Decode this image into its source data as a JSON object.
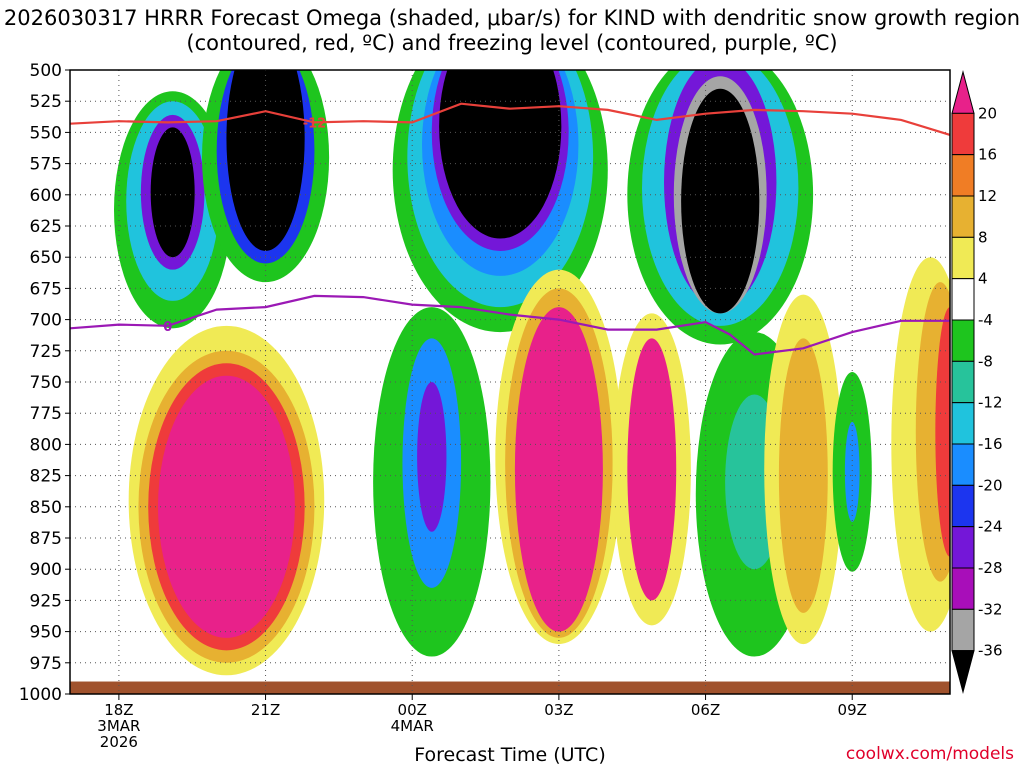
{
  "chart_data": {
    "type": "heatmap",
    "title": "2026030317 HRRR Forecast Omega (shaded, μbar/s) for KIND with dendritic snow growth region (contoured, red, ºC) and freezing level (contoured, purple, ºC)",
    "xlabel": "Forecast Time (UTC)",
    "ylabel": "",
    "y_ticks": [
      "500",
      "525",
      "550",
      "575",
      "600",
      "625",
      "650",
      "675",
      "700",
      "725",
      "750",
      "775",
      "800",
      "825",
      "850",
      "875",
      "900",
      "925",
      "950",
      "975",
      "1000"
    ],
    "ylim": [
      1000,
      500
    ],
    "x_ticks": [
      {
        "hour": 18,
        "label": "18Z",
        "date1": "3MAR",
        "date2": "2026"
      },
      {
        "hour": 21,
        "label": "21Z",
        "date1": "",
        "date2": ""
      },
      {
        "hour": 24,
        "label": "00Z",
        "date1": "4MAR",
        "date2": ""
      },
      {
        "hour": 27,
        "label": "03Z",
        "date1": "",
        "date2": ""
      },
      {
        "hour": 30,
        "label": "06Z",
        "date1": "",
        "date2": ""
      },
      {
        "hour": 33,
        "label": "09Z",
        "date1": "",
        "date2": ""
      }
    ],
    "xlim": [
      17,
      35
    ],
    "colorbar_levels": [
      "20",
      "16",
      "12",
      "8",
      "4",
      "-4",
      "-8",
      "-12",
      "-16",
      "-20",
      "-24",
      "-28",
      "-32",
      "-36"
    ],
    "colorbar_colors": [
      "#e8218a",
      "#ef3b3b",
      "#f07d25",
      "#e7b131",
      "#f0ea55",
      "#ffffff",
      "#1ec51e",
      "#27c39b",
      "#20c3dd",
      "#1a8dff",
      "#1c35ef",
      "#7417d8",
      "#a80eb9",
      "#a5a5a5",
      "#000000"
    ],
    "freezing_level": {
      "label": "0",
      "color": "#9b19b5",
      "points": [
        [
          17,
          707
        ],
        [
          18,
          704
        ],
        [
          19,
          705
        ],
        [
          20,
          692
        ],
        [
          21,
          690
        ],
        [
          22,
          681
        ],
        [
          23,
          682
        ],
        [
          24,
          688
        ],
        [
          25,
          690
        ],
        [
          26,
          696
        ],
        [
          27,
          700
        ],
        [
          28,
          708
        ],
        [
          29,
          708
        ],
        [
          30,
          702
        ],
        [
          30.5,
          712
        ],
        [
          31,
          728
        ],
        [
          32,
          723
        ],
        [
          33,
          710
        ],
        [
          34,
          701
        ],
        [
          35,
          701
        ]
      ]
    },
    "dendritic_line": {
      "label": "-12",
      "color": "#e8403a",
      "points": [
        [
          17,
          543
        ],
        [
          18,
          541
        ],
        [
          19,
          542
        ],
        [
          20,
          541
        ],
        [
          21,
          533
        ],
        [
          22,
          542
        ],
        [
          23,
          541
        ],
        [
          24,
          542
        ],
        [
          25,
          527
        ],
        [
          26,
          531
        ],
        [
          27,
          529
        ],
        [
          28,
          532
        ],
        [
          29,
          540
        ],
        [
          30,
          535
        ],
        [
          31,
          532
        ],
        [
          32,
          533
        ],
        [
          33,
          535
        ],
        [
          34,
          540
        ],
        [
          35,
          552
        ]
      ]
    },
    "omega_blobs": [
      {
        "color": "#1ec51e",
        "cx": 19.1,
        "cy": 612,
        "rx": 1.2,
        "ry": 95
      },
      {
        "color": "#20c3dd",
        "cx": 19.1,
        "cy": 605,
        "rx": 0.95,
        "ry": 80
      },
      {
        "color": "#7417d8",
        "cx": 19.1,
        "cy": 598,
        "rx": 0.65,
        "ry": 62
      },
      {
        "color": "#000000",
        "cx": 19.1,
        "cy": 598,
        "rx": 0.45,
        "ry": 52
      },
      {
        "color": "#1ec51e",
        "cx": 21,
        "cy": 570,
        "rx": 1.3,
        "ry": 100
      },
      {
        "color": "#1c35ef",
        "cx": 21,
        "cy": 565,
        "rx": 1.0,
        "ry": 90
      },
      {
        "color": "#000000",
        "cx": 21,
        "cy": 555,
        "rx": 0.8,
        "ry": 90
      },
      {
        "color": "#1ec51e",
        "cx": 25.8,
        "cy": 580,
        "rx": 2.2,
        "ry": 130
      },
      {
        "color": "#20c3dd",
        "cx": 25.8,
        "cy": 570,
        "rx": 1.9,
        "ry": 120
      },
      {
        "color": "#1a8dff",
        "cx": 25.8,
        "cy": 560,
        "rx": 1.6,
        "ry": 105
      },
      {
        "color": "#7417d8",
        "cx": 25.8,
        "cy": 550,
        "rx": 1.4,
        "ry": 95
      },
      {
        "color": "#000000",
        "cx": 25.8,
        "cy": 545,
        "rx": 1.25,
        "ry": 90
      },
      {
        "color": "#1ec51e",
        "cx": 30.3,
        "cy": 600,
        "rx": 1.9,
        "ry": 120
      },
      {
        "color": "#20c3dd",
        "cx": 30.3,
        "cy": 595,
        "rx": 1.6,
        "ry": 110
      },
      {
        "color": "#7417d8",
        "cx": 30.3,
        "cy": 590,
        "rx": 1.15,
        "ry": 100
      },
      {
        "color": "#a5a5a5",
        "cx": 30.3,
        "cy": 600,
        "rx": 0.95,
        "ry": 95
      },
      {
        "color": "#000000",
        "cx": 30.3,
        "cy": 605,
        "rx": 0.8,
        "ry": 90
      },
      {
        "color": "#f0ea55",
        "cx": 20.2,
        "cy": 845,
        "rx": 2.0,
        "ry": 140
      },
      {
        "color": "#e7b131",
        "cx": 20.2,
        "cy": 850,
        "rx": 1.8,
        "ry": 125
      },
      {
        "color": "#ef3b3b",
        "cx": 20.2,
        "cy": 850,
        "rx": 1.6,
        "ry": 115
      },
      {
        "color": "#e8218a",
        "cx": 20.2,
        "cy": 850,
        "rx": 1.4,
        "ry": 105
      },
      {
        "color": "#1ec51e",
        "cx": 24.4,
        "cy": 830,
        "rx": 1.2,
        "ry": 140
      },
      {
        "color": "#1a8dff",
        "cx": 24.4,
        "cy": 815,
        "rx": 0.6,
        "ry": 100
      },
      {
        "color": "#7417d8",
        "cx": 24.4,
        "cy": 810,
        "rx": 0.3,
        "ry": 60
      },
      {
        "color": "#f0ea55",
        "cx": 27,
        "cy": 810,
        "rx": 1.3,
        "ry": 150
      },
      {
        "color": "#e7b131",
        "cx": 27,
        "cy": 815,
        "rx": 1.1,
        "ry": 140
      },
      {
        "color": "#e8218a",
        "cx": 27,
        "cy": 820,
        "rx": 0.9,
        "ry": 130
      },
      {
        "color": "#f0ea55",
        "cx": 28.9,
        "cy": 820,
        "rx": 0.8,
        "ry": 125
      },
      {
        "color": "#e8218a",
        "cx": 28.9,
        "cy": 820,
        "rx": 0.5,
        "ry": 105
      },
      {
        "color": "#1ec51e",
        "cx": 31.0,
        "cy": 840,
        "rx": 1.2,
        "ry": 130
      },
      {
        "color": "#27c39b",
        "cx": 31.0,
        "cy": 830,
        "rx": 0.6,
        "ry": 70
      },
      {
        "color": "#f0ea55",
        "cx": 32,
        "cy": 820,
        "rx": 0.8,
        "ry": 140
      },
      {
        "color": "#e7b131",
        "cx": 32,
        "cy": 825,
        "rx": 0.5,
        "ry": 110
      },
      {
        "color": "#1ec51e",
        "cx": 33,
        "cy": 822,
        "rx": 0.4,
        "ry": 80
      },
      {
        "color": "#1a8dff",
        "cx": 33,
        "cy": 822,
        "rx": 0.15,
        "ry": 40
      },
      {
        "color": "#f0ea55",
        "cx": 34.6,
        "cy": 800,
        "rx": 0.8,
        "ry": 150
      },
      {
        "color": "#e7b131",
        "cx": 34.8,
        "cy": 790,
        "rx": 0.5,
        "ry": 120
      },
      {
        "color": "#ef3b3b",
        "cx": 35,
        "cy": 790,
        "rx": 0.3,
        "ry": 100
      }
    ],
    "surface_color": "#a0522d",
    "grid": "dotted"
  },
  "credit": "coolwx.com/models"
}
